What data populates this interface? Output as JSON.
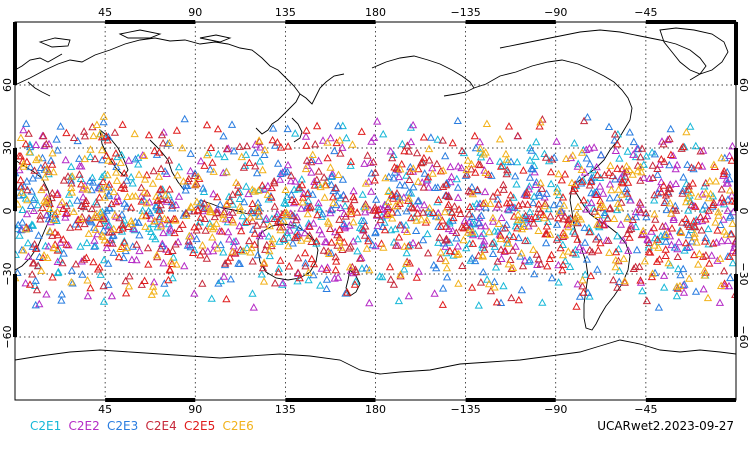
{
  "map": {
    "projection": "cylindrical equidistant",
    "center_longitude": 180,
    "lon_range": [
      0,
      360
    ],
    "lat_range": [
      -90,
      90
    ],
    "graticule": "dotted",
    "top_lon_labels": [
      "45",
      "90",
      "135",
      "180",
      "−135",
      "−90",
      "−45"
    ],
    "bottom_lon_labels": [
      "45",
      "90",
      "135",
      "180",
      "−135",
      "−90",
      "−45"
    ],
    "lat_labels": [
      "60",
      "30",
      "0",
      "−30",
      "−60"
    ]
  },
  "legend": [
    {
      "label": "C2E1",
      "color": "#17b8d8"
    },
    {
      "label": "C2E2",
      "color": "#b52bc6"
    },
    {
      "label": "C2E3",
      "color": "#2a7de0"
    },
    {
      "label": "C2E4",
      "color": "#c6283a"
    },
    {
      "label": "C2E5",
      "color": "#e01d1d"
    },
    {
      "label": "C2E6",
      "color": "#f2b21b"
    }
  ],
  "credit": "UCARwet2.2023-09-27",
  "occultations": {
    "marker": "open triangle",
    "lat_band": [
      -47,
      47
    ],
    "count_per_satellite": 340
  }
}
